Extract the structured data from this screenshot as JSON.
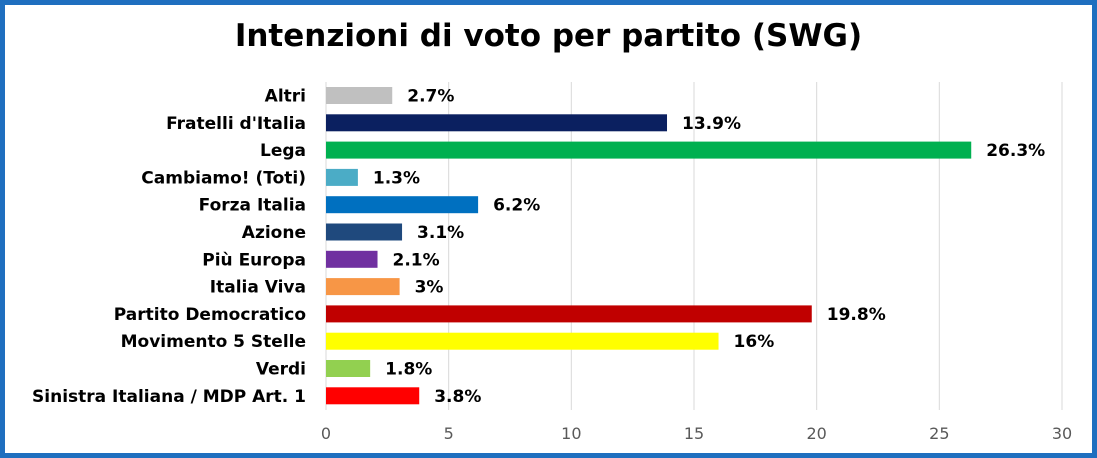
{
  "chart_data": {
    "type": "bar",
    "orientation": "horizontal",
    "title": "Intenzioni di voto per partito (SWG)",
    "xlabel": "",
    "ylabel": "",
    "xlim": [
      0,
      30
    ],
    "ticks": [
      "0",
      "5",
      "10",
      "15",
      "20",
      "25",
      "30"
    ],
    "tick_values": [
      0,
      5,
      10,
      15,
      20,
      25,
      30
    ],
    "grid": "vertical",
    "legend": "none",
    "categories": [
      "Altri",
      "Fratelli d'Italia",
      "Lega",
      "Cambiamo! (Toti)",
      "Forza Italia",
      "Azione",
      "Più Europa",
      "Italia Viva",
      "Partito Democratico",
      "Movimento 5 Stelle",
      "Verdi",
      "Sinistra Italiana / MDP Art. 1"
    ],
    "values": [
      2.7,
      13.9,
      26.3,
      1.3,
      6.2,
      3.1,
      2.1,
      3,
      19.8,
      16,
      1.8,
      3.8
    ],
    "value_labels": [
      "2.7%",
      "13.9%",
      "26.3%",
      "1.3%",
      "6.2%",
      "3.1%",
      "2.1%",
      "3%",
      "19.8%",
      "16%",
      "1.8%",
      "3.8%"
    ],
    "colors": [
      "#c0c0c0",
      "#0b2060",
      "#00b050",
      "#4bacc6",
      "#0070c0",
      "#1f497d",
      "#7030a0",
      "#f79646",
      "#c00000",
      "#ffff00",
      "#92d050",
      "#ff0000"
    ]
  },
  "style": {
    "frame_color": "#1f6fbf",
    "grid_color": "#d9d9d9",
    "tick_color": "#595959"
  }
}
